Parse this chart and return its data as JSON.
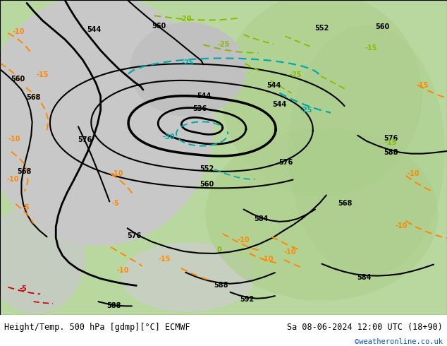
{
  "title_left": "Height/Temp. 500 hPa [gdmp][°C] ECMWF",
  "title_right": "Sa 08-06-2024 12:00 UTC (18+90)",
  "watermark": "©weatheronline.co.uk",
  "label_fontsize": 7,
  "title_fontsize": 8.5,
  "watermark_color": "#0055cc",
  "green_light": "#b8d8a0",
  "gray_light": "#cccccc",
  "orange_color": "#ff8800",
  "cyan_color": "#00aaaa",
  "yg_color": "#88bb00",
  "red_color": "#cc0000",
  "black_color": "#000000",
  "white_color": "#ffffff"
}
